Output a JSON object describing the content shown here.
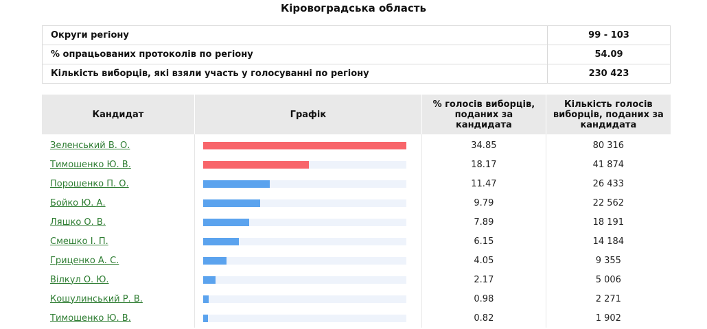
{
  "page_title": "Кіровоградська область",
  "summary": [
    {
      "label": "Округи регіону",
      "value": "99 - 103"
    },
    {
      "label": "% опрацьованих протоколів по регіону",
      "value": "54.09"
    },
    {
      "label": "Кількість виборців, які взяли участь у голосуванні по регіону",
      "value": "230 423"
    }
  ],
  "headers": {
    "candidate": "Кандидат",
    "chart": "Графік",
    "percent": "% голосів виборців, поданих за кандидата",
    "votes": "Кількість голосів виборців, поданих за кандидата"
  },
  "colors": {
    "leader": "#f8656a",
    "other": "#5ba3ee",
    "track": "#eef3fb"
  },
  "candidates": [
    {
      "name": "Зеленський В. О.",
      "percent": "34.85",
      "votes": "80 316",
      "bar": 34.85,
      "color": "#f8656a"
    },
    {
      "name": "Тимошенко Ю. В.",
      "percent": "18.17",
      "votes": "41 874",
      "bar": 18.17,
      "color": "#f8656a"
    },
    {
      "name": "Порошенко П. О.",
      "percent": "11.47",
      "votes": "26 433",
      "bar": 11.47,
      "color": "#5ba3ee"
    },
    {
      "name": "Бойко Ю. А.",
      "percent": "9.79",
      "votes": "22 562",
      "bar": 9.79,
      "color": "#5ba3ee"
    },
    {
      "name": "Ляшко О. В.",
      "percent": "7.89",
      "votes": "18 191",
      "bar": 7.89,
      "color": "#5ba3ee"
    },
    {
      "name": "Смешко І. П.",
      "percent": "6.15",
      "votes": "14 184",
      "bar": 6.15,
      "color": "#5ba3ee"
    },
    {
      "name": "Гриценко А. С.",
      "percent": "4.05",
      "votes": "9 355",
      "bar": 4.05,
      "color": "#5ba3ee"
    },
    {
      "name": "Вілкул О. Ю.",
      "percent": "2.17",
      "votes": "5 006",
      "bar": 2.17,
      "color": "#5ba3ee"
    },
    {
      "name": "Кошулинський Р. В.",
      "percent": "0.98",
      "votes": "2 271",
      "bar": 0.98,
      "color": "#5ba3ee"
    },
    {
      "name": "Тимошенко Ю. В.",
      "percent": "0.82",
      "votes": "1 902",
      "bar": 0.82,
      "color": "#5ba3ee"
    }
  ]
}
